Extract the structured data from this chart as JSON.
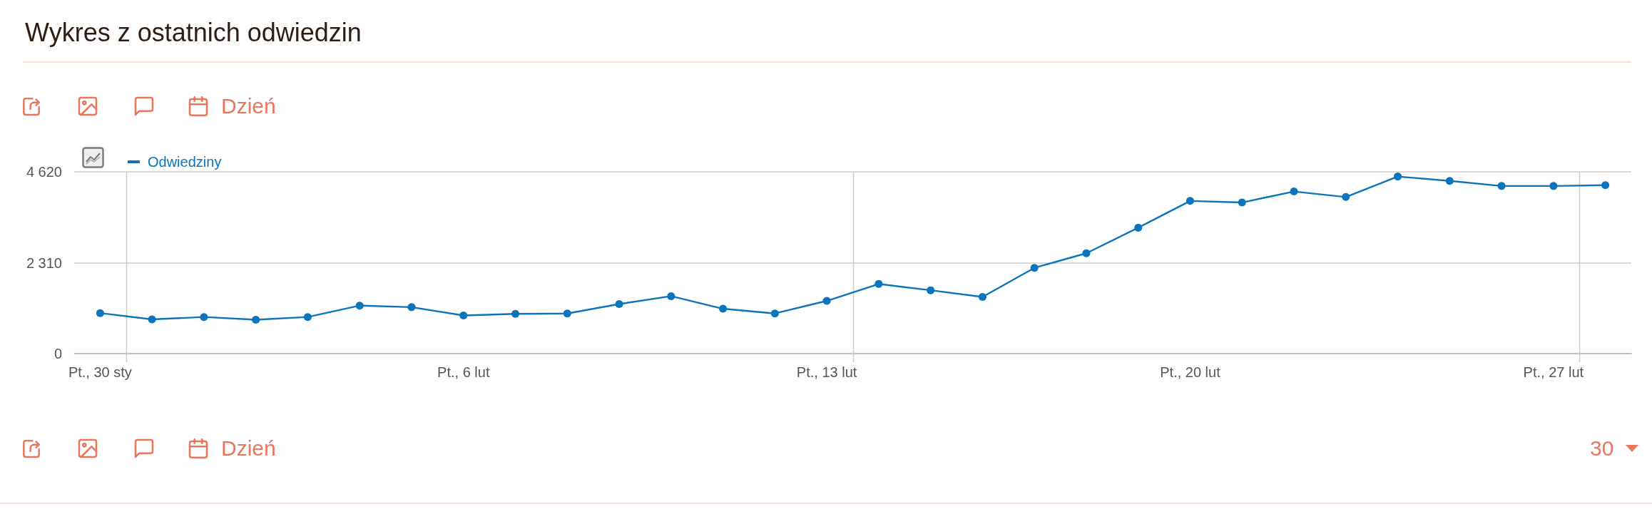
{
  "chart_data": {
    "type": "line",
    "title": "Wykres z ostatnich odwiedzin",
    "categories": [
      "Pt., 30 sty",
      null,
      null,
      null,
      null,
      null,
      null,
      "Pt., 6 lut",
      null,
      null,
      null,
      null,
      null,
      null,
      "Pt., 13 lut",
      null,
      null,
      null,
      null,
      null,
      null,
      "Pt., 20 lut",
      null,
      null,
      null,
      null,
      null,
      null,
      "Pt., 27 lut",
      null
    ],
    "series": [
      {
        "name": "Odwiedziny",
        "color": "#0c74bb",
        "values": [
          1030,
          870,
          930,
          860,
          930,
          1220,
          1180,
          970,
          1010,
          1020,
          1260,
          1460,
          1140,
          1020,
          1340,
          1770,
          1610,
          1440,
          2180,
          2550,
          3200,
          3880,
          3840,
          4120,
          3980,
          4500,
          4390,
          4260,
          4260,
          4280
        ]
      }
    ],
    "ylim": [
      0,
      4620
    ],
    "yticks": [
      0,
      {
        "value": 2310,
        "label": "2 310"
      },
      {
        "value": 4620,
        "label": "4 620"
      }
    ],
    "grid": true,
    "legend": "top left",
    "marker": "circle",
    "line_style": "solid",
    "annotations": [
      "Dzień",
      "Dzień",
      "30"
    ]
  }
}
